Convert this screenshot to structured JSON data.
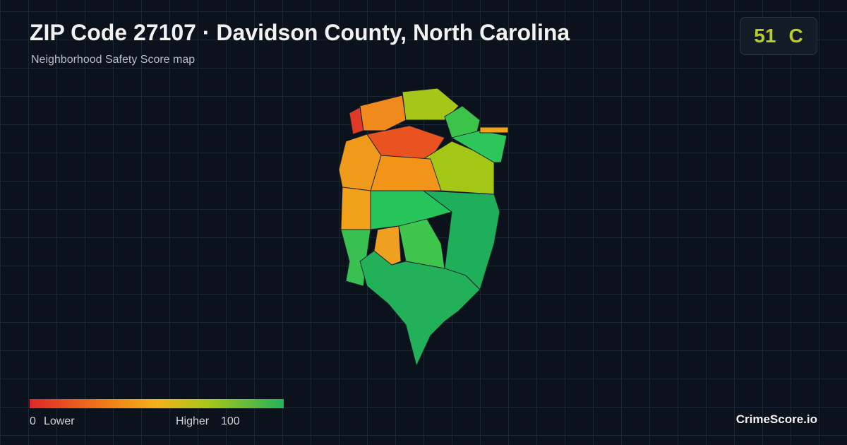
{
  "header": {
    "title": "ZIP Code 27107 · Davidson County, North Carolina",
    "subtitle": "Neighborhood Safety Score map"
  },
  "badge": {
    "score": 51,
    "grade": "C"
  },
  "legend": {
    "min": 0,
    "min_label": "Lower",
    "max_label": "Higher",
    "max": 100
  },
  "brand": "CrimeScore.io"
}
